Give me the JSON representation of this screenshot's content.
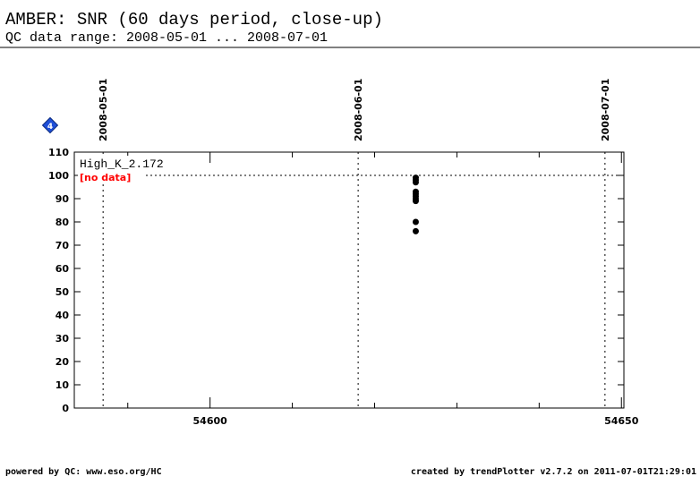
{
  "header": {
    "title": "AMBER: SNR (60 days period, close-up)",
    "subtitle": "QC data range: 2008-05-01 ... 2008-07-01"
  },
  "chart_data": {
    "type": "scatter",
    "x": [
      54625,
      54625,
      54625,
      54625,
      54625,
      54625,
      54625,
      54625,
      54625,
      54625
    ],
    "series": [
      {
        "name": "High_K_2.172",
        "color": "#000000",
        "values": [
          99,
          98,
          97,
          93,
          92,
          91,
          90,
          89,
          80,
          76
        ]
      }
    ],
    "annotation": "[no data]",
    "annotation_color": "#ff0000",
    "xlim": [
      54583.5,
      54650.3
    ],
    "xticks": [
      54600,
      54650
    ],
    "x_minor_ticks": [
      54590,
      54610,
      54620,
      54630,
      54640
    ],
    "ylim": [
      0,
      110
    ],
    "yticks": [
      0,
      10,
      20,
      30,
      40,
      50,
      60,
      70,
      80,
      90,
      100,
      110
    ],
    "reference_line": 100,
    "date_lines": [
      {
        "value": 54587,
        "label": "2008-05-01"
      },
      {
        "value": 54618,
        "label": "2008-06-01"
      },
      {
        "value": 54648,
        "label": "2008-07-01"
      }
    ],
    "badge": "4"
  },
  "footer": {
    "left": "powered by QC: www.eso.org/HC",
    "right": "created by trendPlotter v2.7.2 on 2011-07-01T21:29:01"
  }
}
